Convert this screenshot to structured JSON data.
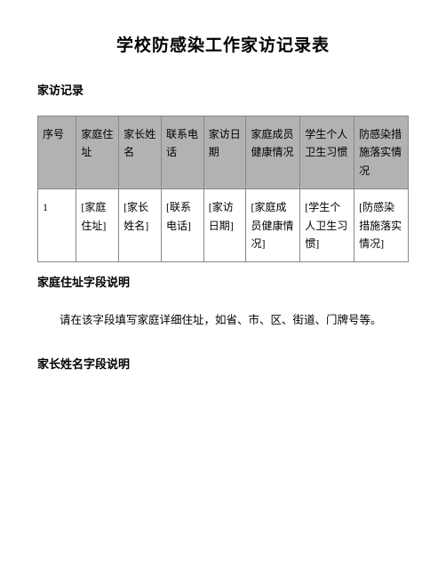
{
  "title": "学校防感染工作家访记录表",
  "section_header": "家访记录",
  "table": {
    "headers": [
      "序号",
      "家庭住址",
      "家长姓名",
      "联系电话",
      "家访日期",
      "家庭成员健康情况",
      "学生个人卫生习惯",
      "防感染措施落实情况"
    ],
    "row": [
      "1",
      "[家庭住址]",
      "[家长姓名]",
      "[联系电话]",
      "[家访日期]",
      "[家庭成员健康情况]",
      "[学生个人卫生习惯]",
      "[防感染措施落实情况]"
    ]
  },
  "field1": {
    "header": "家庭住址字段说明",
    "desc": "请在该字段填写家庭详细住址，如省、市、区、街道、门牌号等。"
  },
  "field2": {
    "header": "家长姓名字段说明"
  },
  "styles": {
    "header_bg": "#b2b2b2",
    "border_color": "#888888",
    "text_color": "#000000",
    "page_bg": "#ffffff"
  }
}
